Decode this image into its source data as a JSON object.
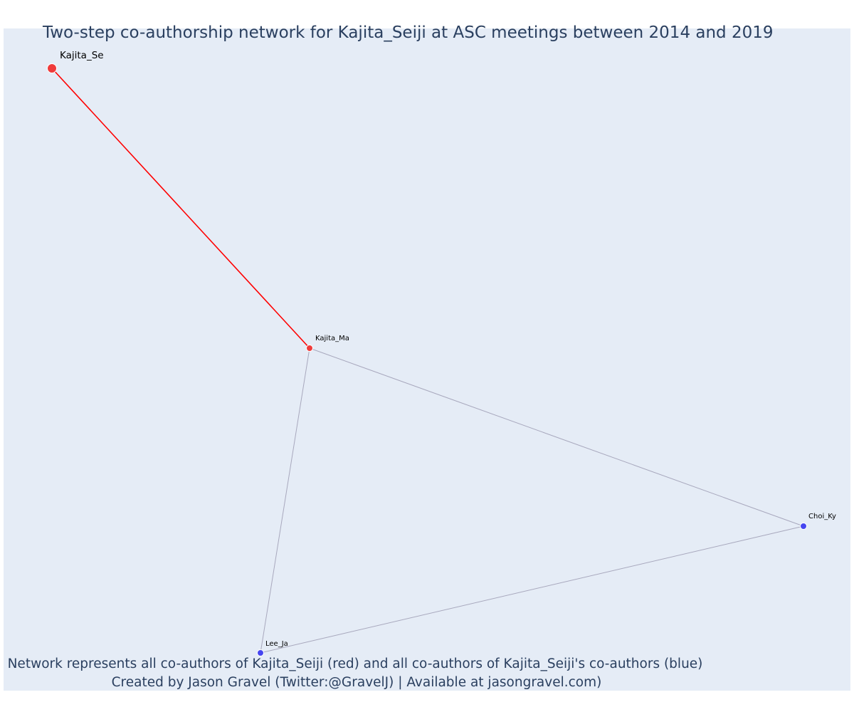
{
  "title": "Two-step co-authorship network for Kajita_Seiji at ASC meetings between 2014 and 2019",
  "caption": {
    "line1": "Network represents all co-authors of Kajita_Seiji (red) and all co-authors of Kajita_Seiji's co-authors (blue)",
    "line2": "Created by Jason Gravel (Twitter:@GravelJ) | Available at jasongravel.com)"
  },
  "colors": {
    "plot_background": "#e5ecf6",
    "title_text": "#2a3f5f",
    "focal_edge": "#ff0000",
    "secondary_edge": "#a8a8bd",
    "first_step_node": "#ef3b3b",
    "second_step_node": "#4646f0",
    "node_outline": "#ffffff"
  },
  "nodes": [
    {
      "id": "kajita-se",
      "label": "Kajita_Se",
      "group": "focal"
    },
    {
      "id": "kajita-ma",
      "label": "Kajita_Ma",
      "group": "first-step"
    },
    {
      "id": "choi-ky",
      "label": "Choi_Ky",
      "group": "second-step"
    },
    {
      "id": "lee-ja",
      "label": "Lee_Ja",
      "group": "second-step"
    }
  ],
  "edges": [
    {
      "source": "kajita-se",
      "target": "kajita-ma",
      "kind": "focal"
    },
    {
      "source": "kajita-ma",
      "target": "choi-ky",
      "kind": "secondary"
    },
    {
      "source": "kajita-ma",
      "target": "lee-ja",
      "kind": "secondary"
    },
    {
      "source": "lee-ja",
      "target": "choi-ky",
      "kind": "secondary"
    }
  ]
}
